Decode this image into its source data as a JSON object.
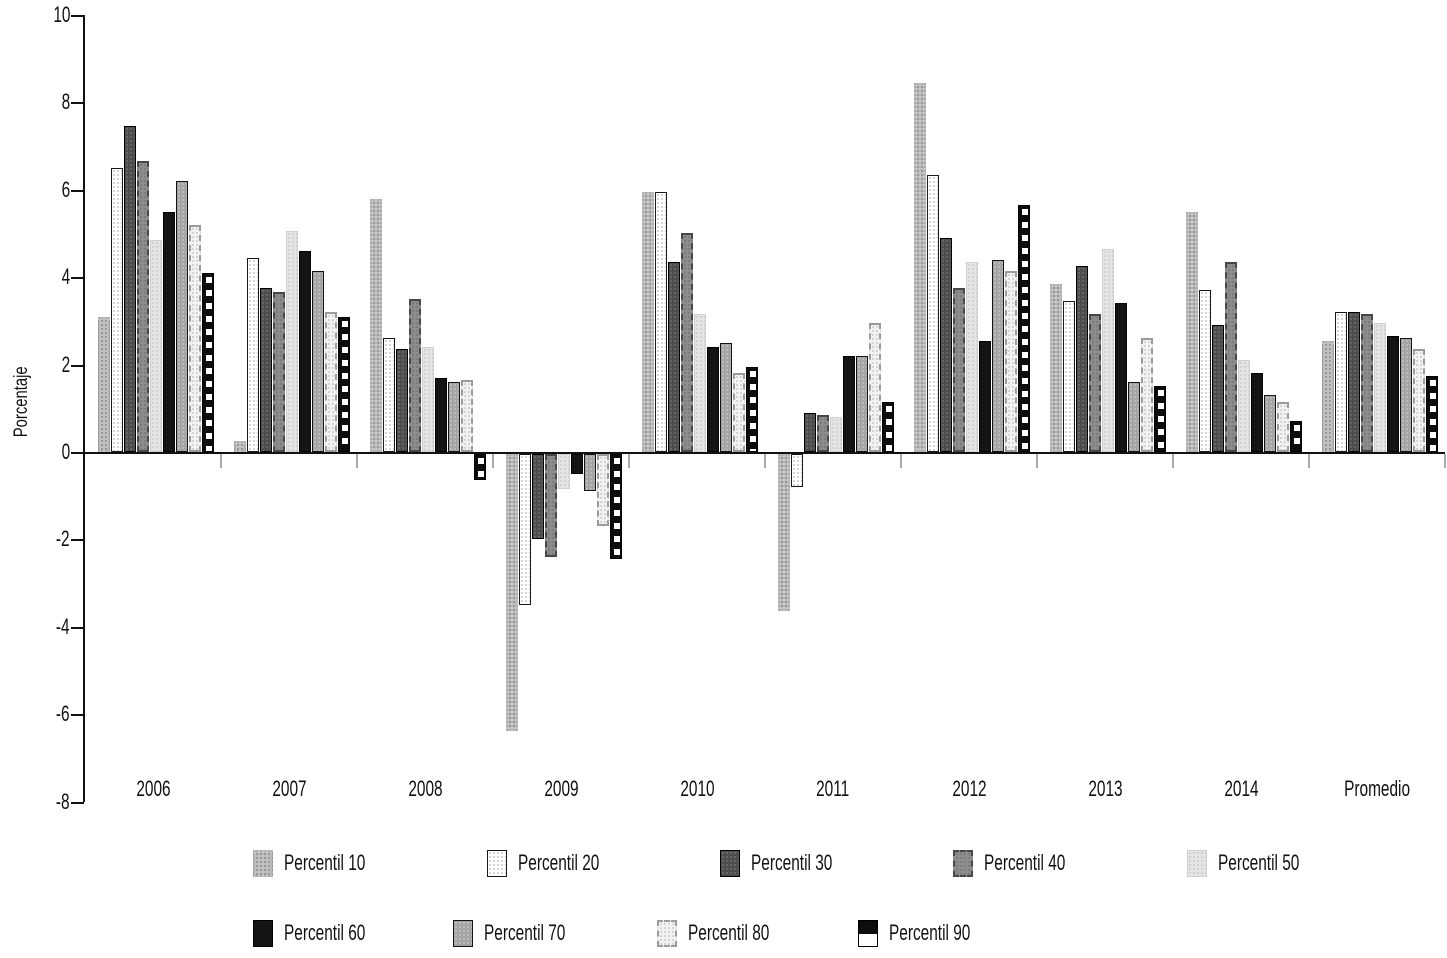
{
  "chart_data": {
    "type": "bar",
    "title": "",
    "xlabel": "",
    "ylabel": "Porcentaje",
    "ylim": [
      -8,
      10
    ],
    "yticks": [
      10,
      8,
      6,
      4,
      2,
      0,
      -2,
      -4,
      -6,
      -8
    ],
    "grid": false,
    "legend_position": "bottom",
    "categories": [
      "2006",
      "2007",
      "2008",
      "2009",
      "2010",
      "2011",
      "2012",
      "2013",
      "2014",
      "Promedio"
    ],
    "series": [
      {
        "name": "Percentil 10",
        "pattern": "stippled-light-gray",
        "fill": "#c4c4c4",
        "values": [
          3.1,
          0.25,
          5.8,
          -6.35,
          5.95,
          -3.6,
          8.45,
          3.85,
          5.5,
          2.55
        ]
      },
      {
        "name": "Percentil 20",
        "pattern": "white-speckled-black-outline",
        "fill": "#ffffff",
        "values": [
          6.5,
          4.45,
          2.6,
          -3.45,
          5.95,
          -0.75,
          6.35,
          3.45,
          3.7,
          3.2
        ]
      },
      {
        "name": "Percentil 30",
        "pattern": "dark-charcoal-solid",
        "fill": "#4e4e4e",
        "values": [
          7.45,
          3.75,
          2.35,
          -1.95,
          4.35,
          0.9,
          4.9,
          4.25,
          2.9,
          3.2
        ]
      },
      {
        "name": "Percentil 40",
        "pattern": "medium-gray-dashed-outline",
        "fill": "#8d8d8d",
        "values": [
          6.65,
          3.65,
          3.5,
          -2.35,
          5.0,
          0.85,
          3.75,
          3.15,
          4.35,
          3.15
        ]
      },
      {
        "name": "Percentil 50",
        "pattern": "pale-gray-speckled",
        "fill": "#e4e4e4",
        "values": [
          4.85,
          5.05,
          2.4,
          -0.8,
          3.15,
          0.8,
          4.35,
          4.65,
          2.1,
          2.95
        ]
      },
      {
        "name": "Percentil 60",
        "pattern": "black-solid",
        "fill": "#141414",
        "values": [
          5.5,
          4.6,
          1.7,
          -0.45,
          2.4,
          2.2,
          2.55,
          3.4,
          1.8,
          2.65
        ]
      },
      {
        "name": "Percentil 70",
        "pattern": "gray-solid-black-outline",
        "fill": "#a5a5a5",
        "values": [
          6.2,
          4.15,
          1.6,
          -0.85,
          2.5,
          2.2,
          4.4,
          1.6,
          1.3,
          2.6
        ]
      },
      {
        "name": "Percentil 80",
        "pattern": "pale-speckled-dashed-outline",
        "fill": "#f2f2f2",
        "values": [
          5.2,
          3.2,
          1.65,
          -1.65,
          1.8,
          2.95,
          4.15,
          2.6,
          1.15,
          2.35
        ]
      },
      {
        "name": "Percentil 90",
        "pattern": "black-white-checker",
        "fill": "#0d0d0d",
        "values": [
          4.1,
          3.1,
          -0.6,
          -2.4,
          1.95,
          1.15,
          5.65,
          1.5,
          0.7,
          1.75
        ]
      }
    ]
  },
  "colors": {
    "axis": "#111111",
    "group_tick": "#a9a9a9",
    "text": "#111111",
    "background": "#ffffff"
  }
}
